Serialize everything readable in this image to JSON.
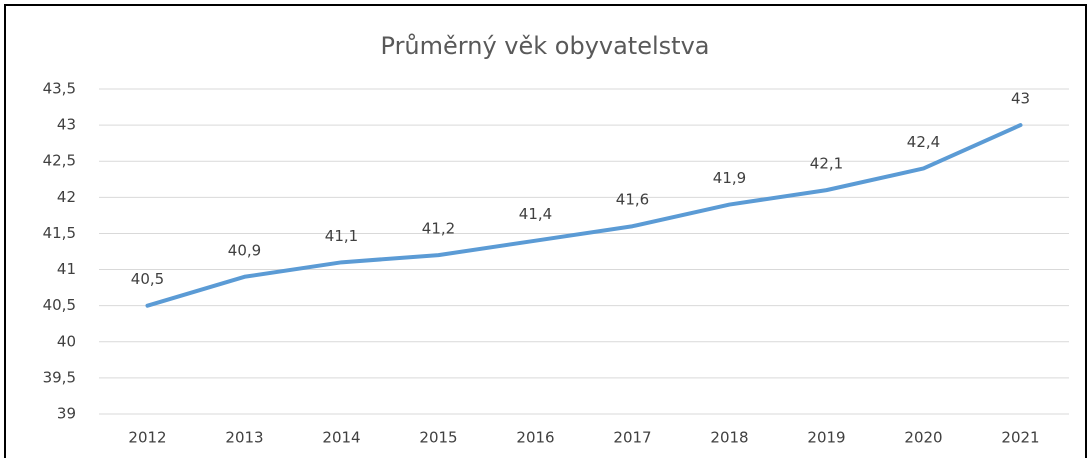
{
  "chart_data": {
    "type": "line",
    "title": "Průměrný věk obyvatelstva",
    "categories": [
      "2012",
      "2013",
      "2014",
      "2015",
      "2016",
      "2017",
      "2018",
      "2019",
      "2020",
      "2021"
    ],
    "values": [
      40.5,
      40.9,
      41.1,
      41.2,
      41.4,
      41.6,
      41.9,
      42.1,
      42.4,
      43
    ],
    "value_labels": [
      "40,5",
      "40,9",
      "41,1",
      "41,2",
      "41,4",
      "41,6",
      "41,9",
      "42,1",
      "42,4",
      "43"
    ],
    "color": "#5b9bd5",
    "ylim": [
      39,
      43.5
    ],
    "yticks": [
      39,
      {
        "value": 39.5,
        "label": "39,5"
      },
      40,
      {
        "value": 40.5,
        "label": "40,5"
      },
      41,
      {
        "value": 41.5,
        "label": "41,5"
      },
      42,
      {
        "value": 42.5,
        "label": "42,5"
      },
      43,
      {
        "value": 43.5,
        "label": "43,5"
      }
    ],
    "grid": true
  }
}
